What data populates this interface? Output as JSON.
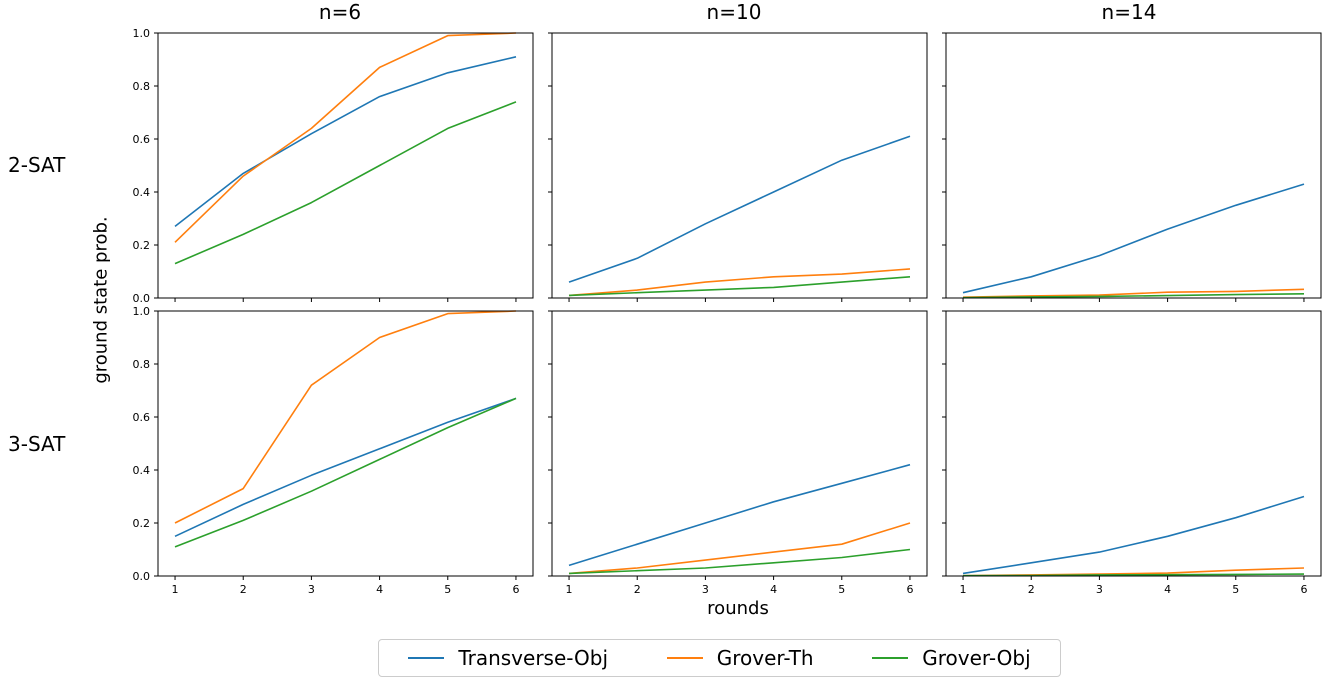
{
  "columns": [
    "n=6",
    "n=10",
    "n=14"
  ],
  "rows": [
    "2-SAT",
    "3-SAT"
  ],
  "xlabel": "rounds",
  "ylabel": "ground state prob.",
  "legend": [
    {
      "name": "Transverse-Obj",
      "color": "#1f77b4"
    },
    {
      "name": "Grover-Th",
      "color": "#ff7f0e"
    },
    {
      "name": "Grover-Obj",
      "color": "#2ca02c"
    }
  ],
  "chart_data": {
    "type": "line",
    "x": [
      1,
      2,
      3,
      4,
      5,
      6
    ],
    "xticks": [
      "1",
      "2",
      "3",
      "4",
      "5",
      "6"
    ],
    "yticks": [
      "0.0",
      "0.2",
      "0.4",
      "0.6",
      "0.8",
      "1.0"
    ],
    "ylim": [
      0,
      1
    ],
    "panels": [
      {
        "row": "2-SAT",
        "col": "n=6",
        "series": [
          {
            "name": "Transverse-Obj",
            "values": [
              0.27,
              0.47,
              0.62,
              0.76,
              0.85,
              0.91
            ]
          },
          {
            "name": "Grover-Th",
            "values": [
              0.21,
              0.46,
              0.64,
              0.87,
              0.99,
              1.0
            ]
          },
          {
            "name": "Grover-Obj",
            "values": [
              0.13,
              0.24,
              0.36,
              0.5,
              0.64,
              0.74
            ]
          }
        ]
      },
      {
        "row": "2-SAT",
        "col": "n=10",
        "series": [
          {
            "name": "Transverse-Obj",
            "values": [
              0.06,
              0.15,
              0.28,
              0.4,
              0.52,
              0.61
            ]
          },
          {
            "name": "Grover-Th",
            "values": [
              0.01,
              0.03,
              0.06,
              0.08,
              0.09,
              0.11
            ]
          },
          {
            "name": "Grover-Obj",
            "values": [
              0.01,
              0.02,
              0.03,
              0.04,
              0.06,
              0.08
            ]
          }
        ]
      },
      {
        "row": "2-SAT",
        "col": "n=14",
        "series": [
          {
            "name": "Transverse-Obj",
            "values": [
              0.02,
              0.08,
              0.16,
              0.26,
              0.35,
              0.43
            ]
          },
          {
            "name": "Grover-Th",
            "values": [
              0.003,
              0.008,
              0.011,
              0.022,
              0.025,
              0.033
            ]
          },
          {
            "name": "Grover-Obj",
            "values": [
              0.001,
              0.004,
              0.006,
              0.009,
              0.013,
              0.016
            ]
          }
        ]
      },
      {
        "row": "3-SAT",
        "col": "n=6",
        "series": [
          {
            "name": "Transverse-Obj",
            "values": [
              0.15,
              0.27,
              0.38,
              0.48,
              0.58,
              0.67
            ]
          },
          {
            "name": "Grover-Th",
            "values": [
              0.2,
              0.33,
              0.72,
              0.9,
              0.99,
              1.0
            ]
          },
          {
            "name": "Grover-Obj",
            "values": [
              0.11,
              0.21,
              0.32,
              0.44,
              0.56,
              0.67
            ]
          }
        ]
      },
      {
        "row": "3-SAT",
        "col": "n=10",
        "series": [
          {
            "name": "Transverse-Obj",
            "values": [
              0.04,
              0.12,
              0.2,
              0.28,
              0.35,
              0.42
            ]
          },
          {
            "name": "Grover-Th",
            "values": [
              0.01,
              0.03,
              0.06,
              0.09,
              0.12,
              0.2
            ]
          },
          {
            "name": "Grover-Obj",
            "values": [
              0.01,
              0.02,
              0.03,
              0.05,
              0.07,
              0.1
            ]
          }
        ]
      },
      {
        "row": "3-SAT",
        "col": "n=14",
        "series": [
          {
            "name": "Transverse-Obj",
            "values": [
              0.01,
              0.05,
              0.09,
              0.15,
              0.22,
              0.3
            ]
          },
          {
            "name": "Grover-Th",
            "values": [
              0.001,
              0.004,
              0.007,
              0.011,
              0.022,
              0.03
            ]
          },
          {
            "name": "Grover-Obj",
            "values": [
              0.001,
              0.002,
              0.004,
              0.005,
              0.006,
              0.007
            ]
          }
        ]
      }
    ]
  }
}
